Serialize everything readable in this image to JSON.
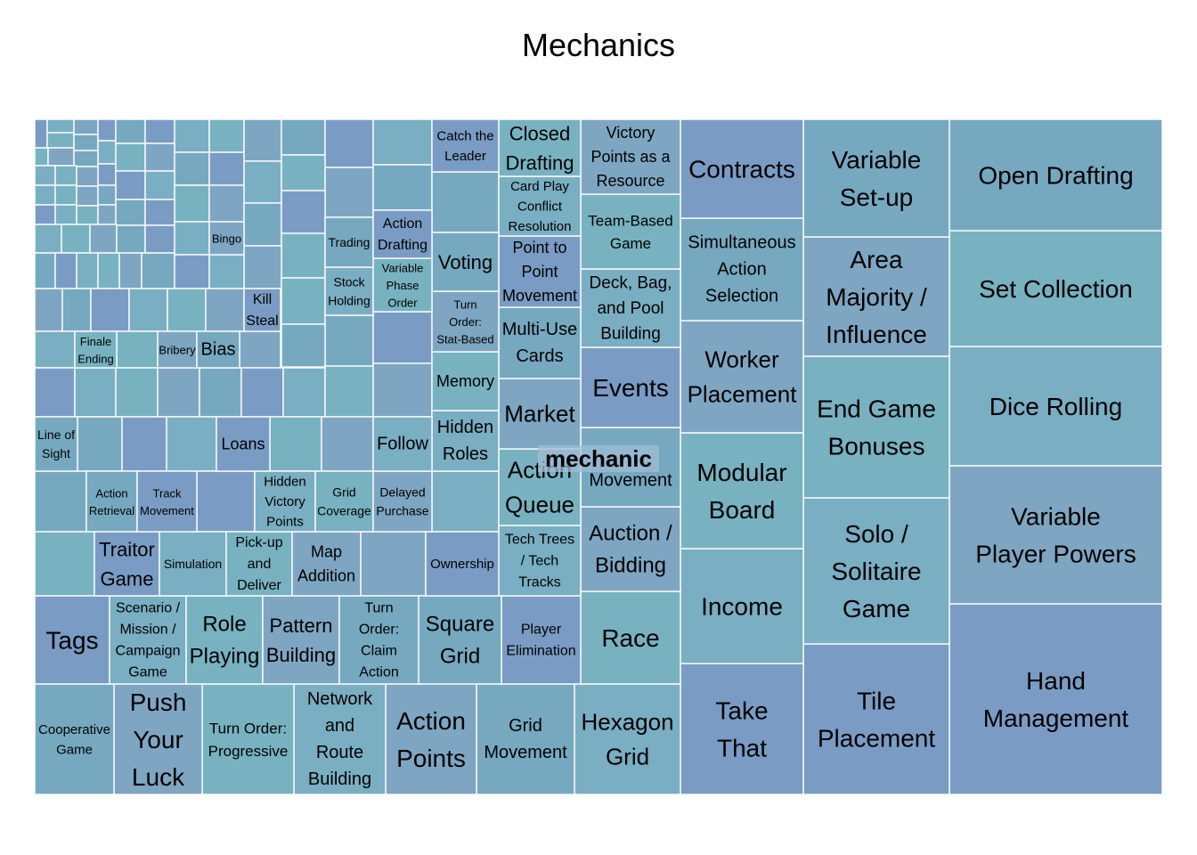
{
  "chart_title": "Mechanics",
  "hover_label": "mechanic",
  "chart_data": {
    "type": "treemap",
    "title": "Mechanics",
    "colors": [
      "#7a9cc4",
      "#7aaec2",
      "#78b2c0",
      "#7ea6c2",
      "#76a9c0"
    ],
    "labeled_nodes": [
      "Hand Management",
      "Dice Rolling",
      "Set Collection",
      "Variable Player Powers",
      "Open Drafting",
      "Tile Placement",
      "Solo / Solitaire Game",
      "End Game Bonuses",
      "Area Majority / Influence",
      "Variable Set-up",
      "Take That",
      "Income",
      "Modular Board",
      "Worker Placement",
      "Simultaneous Action Selection",
      "Contracts",
      "Hexagon Grid",
      "Race",
      "Auction / Bidding",
      "Movement",
      "Events",
      "Deck, Bag, and Pool Building",
      "Team-Based Game",
      "Victory Points as a Resource",
      "Grid Movement",
      "Player Elimination",
      "Tech Trees / Tech Tracks",
      "Action Queue",
      "Market",
      "Multi-Use Cards",
      "Point to Point Movement",
      "Card Play Conflict Resolution",
      "Closed Drafting",
      "Action Points",
      "Square Grid",
      "Ownership",
      "Hidden Roles",
      "Memory",
      "Turn Order: Stat-Based",
      "Voting",
      "Catch the Leader",
      "Network and Route Building",
      "Turn Order: Progressive",
      "Push Your Luck",
      "Cooperative Game",
      "Tags",
      "Scenario / Mission / Campaign Game",
      "Role Playing",
      "Pattern Building",
      "Turn Order: Claim Action",
      "Traitor Game",
      "Simulation",
      "Pick-up and Deliver",
      "Map Addition",
      "Action Retrieval",
      "Track Movement",
      "Hidden Victory Points",
      "Grid Coverage",
      "Delayed Purchase",
      "Line of Sight",
      "Loans",
      "Follow",
      "Finale Ending",
      "Bribery",
      "Bias",
      "Kill Steal",
      "Stock Holding",
      "Variable Phase Order",
      "Bingo",
      "Trading",
      "Action Drafting"
    ]
  }
}
